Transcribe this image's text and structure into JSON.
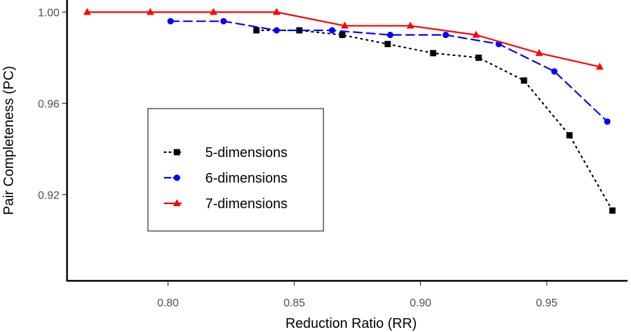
{
  "chart_data": {
    "type": "line",
    "title": "",
    "xlabel": "Reduction Ratio (RR)",
    "ylabel": "Pair Completeness (PC)",
    "xlim": [
      0.76,
      0.982
    ],
    "ylim": [
      0.8822,
      1.0053
    ],
    "x_ticks": [
      0.8,
      0.85,
      0.9,
      0.95
    ],
    "x_tick_labels": [
      "0.80",
      "0.85",
      "0.90",
      "0.95"
    ],
    "y_ticks": [
      0.92,
      0.96,
      1.0
    ],
    "y_tick_labels": [
      "0.92",
      "0.96",
      "1.00"
    ],
    "grid": false,
    "legend_position": "center-left",
    "series": [
      {
        "name": "5-dimensions",
        "color": "#000000",
        "line_style": "dotted",
        "marker": "square",
        "points": [
          [
            0.835,
            0.992
          ],
          [
            0.852,
            0.992
          ],
          [
            0.869,
            0.99
          ],
          [
            0.887,
            0.986
          ],
          [
            0.905,
            0.982
          ],
          [
            0.923,
            0.98
          ],
          [
            0.941,
            0.97
          ],
          [
            0.959,
            0.946
          ],
          [
            0.976,
            0.913
          ]
        ]
      },
      {
        "name": "6-dimensions",
        "color": "#0000ff",
        "line_style": "dashed",
        "marker": "circle",
        "points": [
          [
            0.801,
            0.996
          ],
          [
            0.822,
            0.996
          ],
          [
            0.843,
            0.992
          ],
          [
            0.865,
            0.992
          ],
          [
            0.888,
            0.99
          ],
          [
            0.91,
            0.99
          ],
          [
            0.931,
            0.986
          ],
          [
            0.953,
            0.974
          ],
          [
            0.974,
            0.952
          ]
        ]
      },
      {
        "name": "7-dimensions",
        "color": "#ff0000",
        "line_style": "solid",
        "marker": "triangle",
        "points": [
          [
            0.768,
            1.0
          ],
          [
            0.793,
            1.0
          ],
          [
            0.818,
            1.0
          ],
          [
            0.843,
            1.0
          ],
          [
            0.87,
            0.994
          ],
          [
            0.896,
            0.994
          ],
          [
            0.922,
            0.99
          ],
          [
            0.947,
            0.982
          ],
          [
            0.971,
            0.976
          ]
        ]
      }
    ]
  }
}
